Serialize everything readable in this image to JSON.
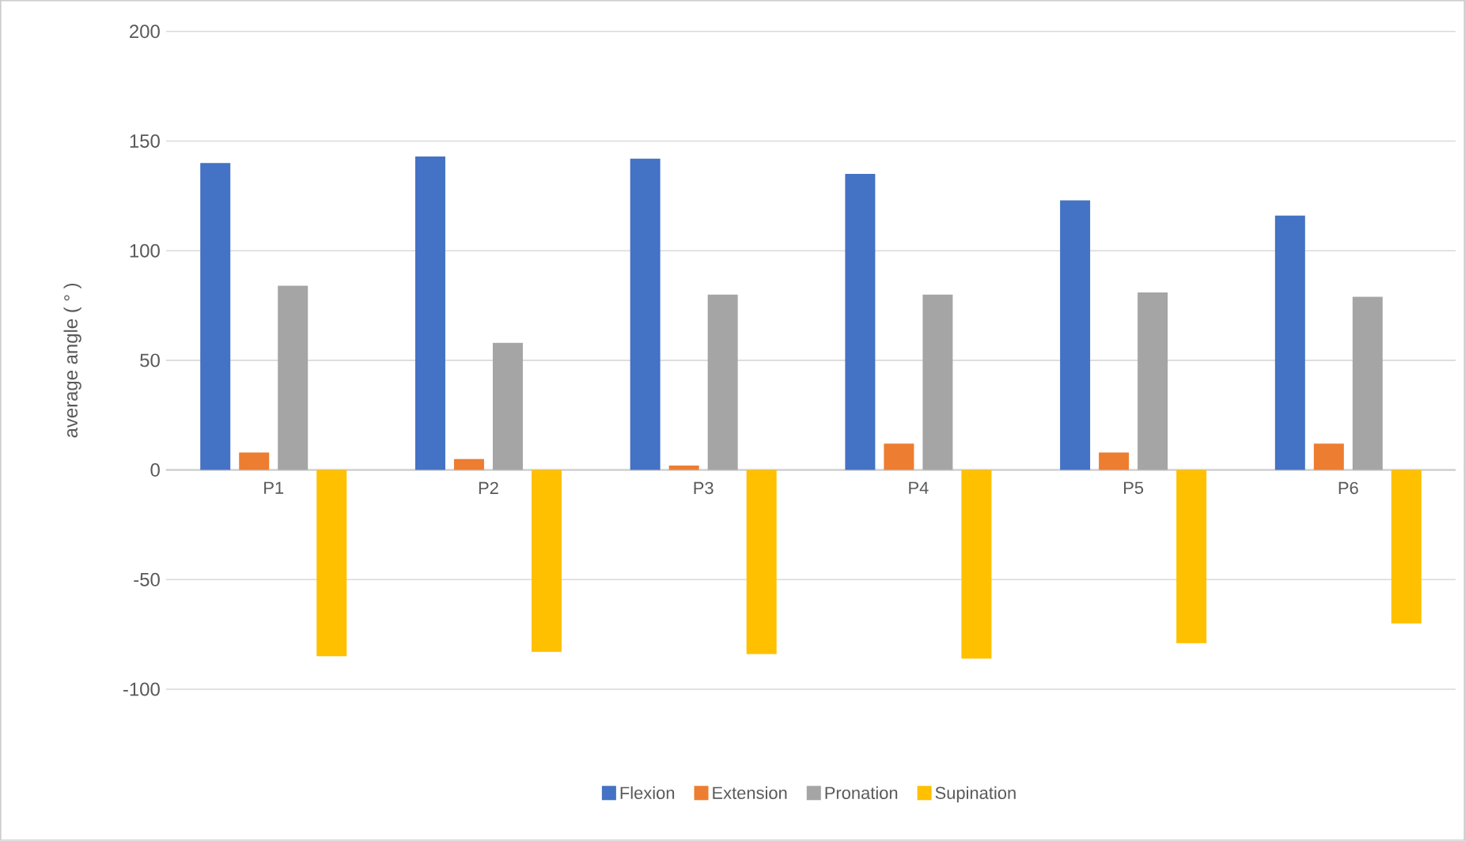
{
  "chart_data": {
    "type": "bar",
    "ylabel": "average angle ( ° )",
    "categories": [
      "P1",
      "P2",
      "P3",
      "P4",
      "P5",
      "P6"
    ],
    "series": [
      {
        "name": "Flexion",
        "color": "#4472c4",
        "values": [
          140,
          143,
          142,
          135,
          123,
          116
        ]
      },
      {
        "name": "Extension",
        "color": "#ed7d31",
        "values": [
          8,
          5,
          2,
          12,
          8,
          12
        ]
      },
      {
        "name": "Pronation",
        "color": "#a5a5a5",
        "values": [
          84,
          58,
          80,
          80,
          81,
          79
        ]
      },
      {
        "name": "Supination",
        "color": "#ffc000",
        "values": [
          -85,
          -83,
          -84,
          -86,
          -79,
          -70
        ]
      }
    ],
    "ylim": [
      -100,
      200
    ],
    "yticks": [
      -100,
      -50,
      0,
      50,
      100,
      150,
      200
    ],
    "grid": "y",
    "legend": "bottom"
  }
}
